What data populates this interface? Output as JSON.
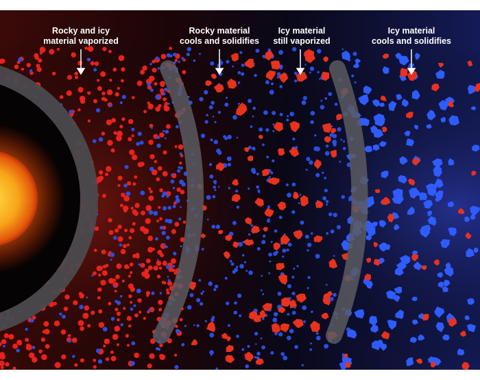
{
  "labels": [
    {
      "lines": [
        "Rocky and icy",
        "material vaporized"
      ]
    },
    {
      "lines": [
        "Rocky material",
        "cools and solidifies"
      ]
    },
    {
      "lines": [
        "Icy material",
        "still vaporized"
      ]
    },
    {
      "lines": [
        "Icy material",
        "cools and solidifies"
      ]
    }
  ]
}
